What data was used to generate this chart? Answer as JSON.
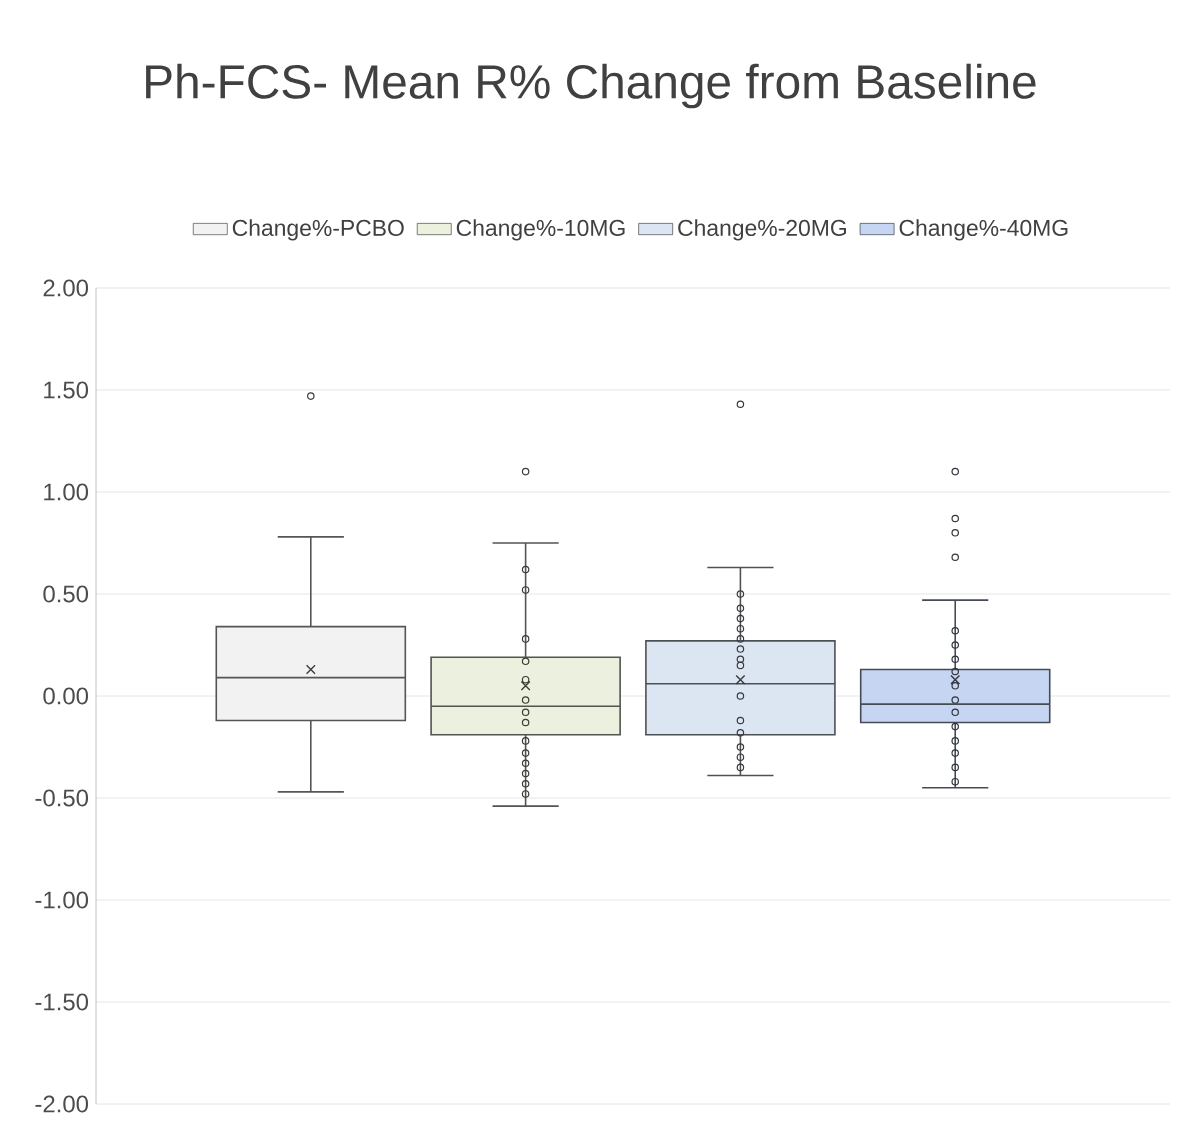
{
  "chart_data": {
    "type": "box",
    "title": "Ph-FCS- Mean R% Change from Baseline",
    "categories": [
      null
    ],
    "series": [
      {
        "name": "Change%-PCBO",
        "color": "#f2f2f2",
        "boxes": [
          {
            "low": -0.47,
            "q1": -0.12,
            "median": 0.09,
            "q3": 0.34,
            "high": 0.78,
            "mean": 0.13,
            "outliers": [
              1.47
            ]
          }
        ]
      },
      {
        "name": "Change%-10MG",
        "color": "#ebf1de",
        "boxes": [
          {
            "low": -0.54,
            "q1": -0.19,
            "median": -0.05,
            "q3": 0.19,
            "high": 0.75,
            "mean": 0.05,
            "outliers": [
              1.1,
              0.62,
              0.52,
              0.28,
              0.17,
              0.08,
              -0.02,
              -0.08,
              -0.13,
              -0.22,
              -0.28,
              -0.33,
              -0.38,
              -0.43,
              -0.48
            ]
          }
        ]
      },
      {
        "name": "Change%-20MG",
        "color": "#dce6f2",
        "boxes": [
          {
            "low": -0.39,
            "q1": -0.19,
            "median": 0.06,
            "q3": 0.27,
            "high": 0.63,
            "mean": 0.08,
            "outliers": [
              1.43,
              0.5,
              0.43,
              0.38,
              0.33,
              0.28,
              0.23,
              0.18,
              0.15,
              0.0,
              -0.12,
              -0.18,
              -0.25,
              -0.3,
              -0.35
            ]
          }
        ]
      },
      {
        "name": "Change%-40MG",
        "color": "#c5d5f2",
        "boxes": [
          {
            "low": -0.45,
            "q1": -0.13,
            "median": -0.04,
            "q3": 0.13,
            "high": 0.47,
            "mean": 0.08,
            "outliers": [
              1.1,
              0.87,
              0.8,
              0.68,
              0.32,
              0.25,
              0.18,
              0.12,
              0.05,
              -0.02,
              -0.08,
              -0.15,
              -0.22,
              -0.28,
              -0.35,
              -0.42
            ]
          }
        ]
      }
    ],
    "ylim": [
      -2,
      2
    ],
    "yticks": [
      {
        "value": -2,
        "label": "-2.00"
      },
      {
        "value": -1.5,
        "label": "-1.50"
      },
      {
        "value": -1,
        "label": "-1.00"
      },
      {
        "value": -0.5,
        "label": "-0.50"
      },
      {
        "value": 0,
        "label": "0.00"
      },
      {
        "value": 0.5,
        "label": "0.50"
      },
      {
        "value": 1,
        "label": "1.00"
      },
      {
        "value": 1.5,
        "label": "1.50"
      },
      {
        "value": 2,
        "label": "2.00"
      }
    ],
    "grid": "y",
    "legend": "top",
    "marker": "circle"
  }
}
